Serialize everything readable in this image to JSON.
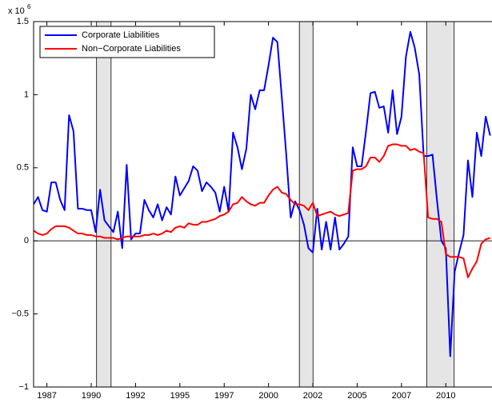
{
  "chart_data": {
    "type": "line",
    "y_multiplier": {
      "base": "x 10",
      "power": "6"
    },
    "x": [
      1986.75,
      1987,
      1987.25,
      1987.5,
      1987.75,
      1988,
      1988.25,
      1988.5,
      1988.75,
      1989,
      1989.25,
      1989.5,
      1989.75,
      1990,
      1990.25,
      1990.5,
      1990.75,
      1991,
      1991.25,
      1991.5,
      1991.75,
      1992,
      1992.25,
      1992.5,
      1992.75,
      1993,
      1993.25,
      1993.5,
      1993.75,
      1994,
      1994.25,
      1994.5,
      1994.75,
      1995,
      1995.25,
      1995.5,
      1995.75,
      1996,
      1996.25,
      1996.5,
      1996.75,
      1997,
      1997.25,
      1997.5,
      1997.75,
      1998,
      1998.25,
      1998.5,
      1998.75,
      1999,
      1999.25,
      1999.5,
      1999.75,
      2000,
      2000.25,
      2000.5,
      2000.75,
      2001,
      2001.25,
      2001.5,
      2001.75,
      2002,
      2002.25,
      2002.5,
      2002.75,
      2003,
      2003.25,
      2003.5,
      2003.75,
      2004,
      2004.25,
      2004.5,
      2004.75,
      2005,
      2005.25,
      2005.5,
      2005.75,
      2006,
      2006.25,
      2006.5,
      2006.75,
      2007,
      2007.25,
      2007.5,
      2007.75,
      2008,
      2008.25,
      2008.5,
      2008.75,
      2009,
      2009.25,
      2009.5,
      2009.75,
      2010,
      2010.25,
      2010.5,
      2010.75,
      2011,
      2011.25,
      2011.5,
      2011.75,
      2012,
      2012.25,
      2012.5
    ],
    "series": [
      {
        "name": "Corporate Liabilities",
        "color": "#0000ff",
        "values": [
          0.25,
          0.3,
          0.21,
          0.2,
          0.4,
          0.4,
          0.28,
          0.21,
          0.86,
          0.75,
          0.22,
          0.22,
          0.21,
          0.21,
          0.06,
          0.35,
          0.14,
          0.1,
          0.06,
          0.2,
          -0.05,
          0.52,
          0.01,
          0.05,
          0.05,
          0.28,
          0.21,
          0.16,
          0.25,
          0.14,
          0.23,
          0.18,
          0.44,
          0.31,
          0.36,
          0.41,
          0.51,
          0.48,
          0.34,
          0.4,
          0.37,
          0.33,
          0.2,
          0.37,
          0.2,
          0.74,
          0.64,
          0.49,
          0.63,
          1.0,
          0.9,
          1.03,
          1.03,
          1.2,
          1.39,
          1.36,
          0.98,
          0.59,
          0.16,
          0.27,
          0.21,
          0.11,
          -0.05,
          -0.08,
          0.22,
          -0.06,
          0.13,
          -0.06,
          0.16,
          -0.06,
          -0.02,
          0.03,
          0.64,
          0.51,
          0.51,
          0.75,
          1.01,
          1.02,
          0.91,
          0.92,
          0.74,
          1.03,
          0.73,
          0.85,
          1.26,
          1.43,
          1.32,
          1.14,
          0.58,
          0.58,
          0.59,
          0.28,
          0.0,
          -0.05,
          -0.79,
          -0.21,
          -0.08,
          0.04,
          0.55,
          0.3,
          0.74,
          0.58,
          0.85,
          0.72
        ]
      },
      {
        "name": "Non−Corporate Liabilities",
        "color": "#ff0000",
        "values": [
          0.07,
          0.05,
          0.04,
          0.05,
          0.08,
          0.1,
          0.1,
          0.1,
          0.09,
          0.07,
          0.05,
          0.05,
          0.04,
          0.04,
          0.03,
          0.03,
          0.02,
          0.02,
          0.02,
          0.01,
          0.02,
          0.03,
          0.03,
          0.03,
          0.03,
          0.04,
          0.04,
          0.05,
          0.04,
          0.05,
          0.07,
          0.06,
          0.09,
          0.1,
          0.09,
          0.12,
          0.11,
          0.11,
          0.13,
          0.13,
          0.14,
          0.15,
          0.17,
          0.18,
          0.2,
          0.25,
          0.26,
          0.3,
          0.27,
          0.25,
          0.24,
          0.26,
          0.26,
          0.31,
          0.35,
          0.37,
          0.33,
          0.32,
          0.28,
          0.25,
          0.25,
          0.24,
          0.21,
          0.26,
          0.17,
          0.18,
          0.19,
          0.2,
          0.18,
          0.17,
          0.18,
          0.19,
          0.48,
          0.49,
          0.49,
          0.51,
          0.57,
          0.57,
          0.54,
          0.58,
          0.65,
          0.66,
          0.66,
          0.65,
          0.65,
          0.62,
          0.63,
          0.61,
          0.6,
          0.16,
          0.15,
          0.15,
          0.13,
          -0.09,
          -0.11,
          -0.11,
          -0.11,
          -0.12,
          -0.25,
          -0.19,
          -0.14,
          -0.02,
          0.01,
          0.02
        ]
      }
    ],
    "shaded_regions": [
      [
        1990.3,
        1991.12
      ],
      [
        2001.74,
        2002.51
      ],
      [
        2008.93,
        2010.47
      ]
    ],
    "xlim": [
      1986.75,
      2012.65
    ],
    "xticks": [
      {
        "value": 1987.5,
        "label": "1987"
      },
      1990,
      {
        "value": 1992.5,
        "label": "1992"
      },
      1995,
      {
        "value": 1997.5,
        "label": "1997"
      },
      2000,
      {
        "value": 2002.5,
        "label": "2002"
      },
      2005,
      {
        "value": 2007.5,
        "label": "2007"
      },
      2010
    ],
    "ylim": [
      -1,
      1.5
    ],
    "yticks": [
      {
        "value": -1,
        "label": "−1"
      },
      {
        "value": -0.5,
        "label": "−0.5"
      },
      0,
      0.5,
      1,
      1.5
    ],
    "zero_line": true,
    "legend": "upper left"
  }
}
